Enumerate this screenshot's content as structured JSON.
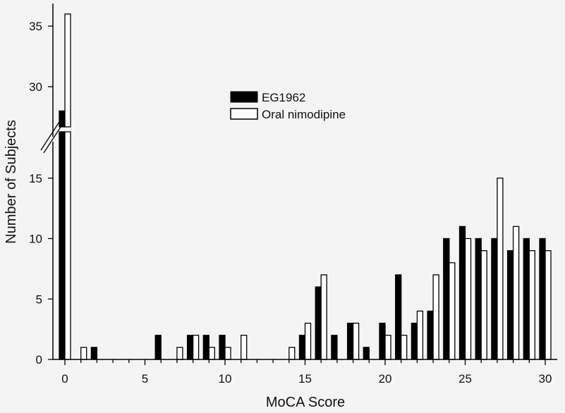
{
  "chart_data": {
    "type": "bar",
    "title": "",
    "xlabel": "MoCA Score",
    "ylabel": "Number of Subjects",
    "x": [
      0,
      1,
      2,
      3,
      4,
      5,
      6,
      7,
      8,
      9,
      10,
      11,
      12,
      13,
      14,
      15,
      16,
      17,
      18,
      19,
      20,
      21,
      22,
      23,
      24,
      25,
      26,
      27,
      28,
      29,
      30
    ],
    "xticks": [
      0,
      5,
      10,
      15,
      20,
      25,
      30
    ],
    "yticks_lower": [
      0,
      5,
      10,
      15
    ],
    "yticks_upper": [
      30,
      35
    ],
    "ylim_lower": [
      0,
      18.8
    ],
    "ylim_upper": [
      27.4,
      36.8
    ],
    "axis_break": true,
    "legend_position": "top-center",
    "series": [
      {
        "name": "EG1962",
        "color": "#000000",
        "values": [
          28,
          0,
          1,
          0,
          0,
          0,
          2,
          0,
          2,
          2,
          2,
          0,
          0,
          0,
          0,
          2,
          6,
          2,
          3,
          1,
          3,
          7,
          3,
          4,
          10,
          11,
          10,
          10,
          9,
          10,
          10
        ]
      },
      {
        "name": "Oral nimodipine",
        "color": "#ffffff",
        "values": [
          36,
          1,
          0,
          0,
          0,
          0,
          0,
          1,
          2,
          1,
          1,
          2,
          0,
          0,
          1,
          3,
          7,
          0,
          3,
          0,
          2,
          2,
          4,
          7,
          8,
          10,
          9,
          15,
          11,
          9,
          9
        ]
      }
    ]
  }
}
